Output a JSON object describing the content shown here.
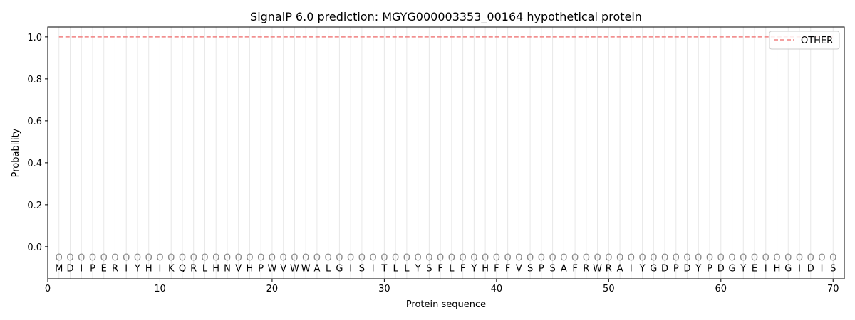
{
  "chart_data": {
    "type": "line",
    "title": "SignalP 6.0 prediction: MGYG000003353_00164 hypothetical protein",
    "xlabel": "Protein sequence",
    "ylabel": "Probability",
    "xlim": [
      0,
      71
    ],
    "ylim": [
      -0.153,
      1.047
    ],
    "xticks": [
      0,
      10,
      20,
      30,
      40,
      50,
      60,
      70
    ],
    "yticks": [
      0.0,
      0.2,
      0.4,
      0.6,
      0.8,
      1.0
    ],
    "ytick_labels": [
      "0.0",
      "0.2",
      "0.4",
      "0.6",
      "0.8",
      "1.0"
    ],
    "grid": "vertical lines at each residue",
    "legend_position": "top-right",
    "sequence": [
      "M",
      "D",
      "I",
      "P",
      "E",
      "R",
      "I",
      "Y",
      "H",
      "I",
      "K",
      "Q",
      "R",
      "L",
      "H",
      "N",
      "V",
      "H",
      "P",
      "W",
      "V",
      "W",
      "W",
      "A",
      "L",
      "G",
      "I",
      "S",
      "I",
      "T",
      "L",
      "L",
      "Y",
      "S",
      "F",
      "L",
      "F",
      "Y",
      "H",
      "F",
      "F",
      "V",
      "S",
      "P",
      "S",
      "A",
      "F",
      "R",
      "W",
      "R",
      "A",
      "I",
      "Y",
      "G",
      "D",
      "P",
      "D",
      "Y",
      "P",
      "D",
      "G",
      "Y",
      "E",
      "I",
      "H",
      "G",
      "I",
      "D",
      "I",
      "S"
    ],
    "predicted_label": "O",
    "series": [
      {
        "name": "OTHER",
        "color": "#f08080",
        "style": "dashed",
        "x_range": [
          1,
          70
        ],
        "value": 1.0
      }
    ]
  }
}
